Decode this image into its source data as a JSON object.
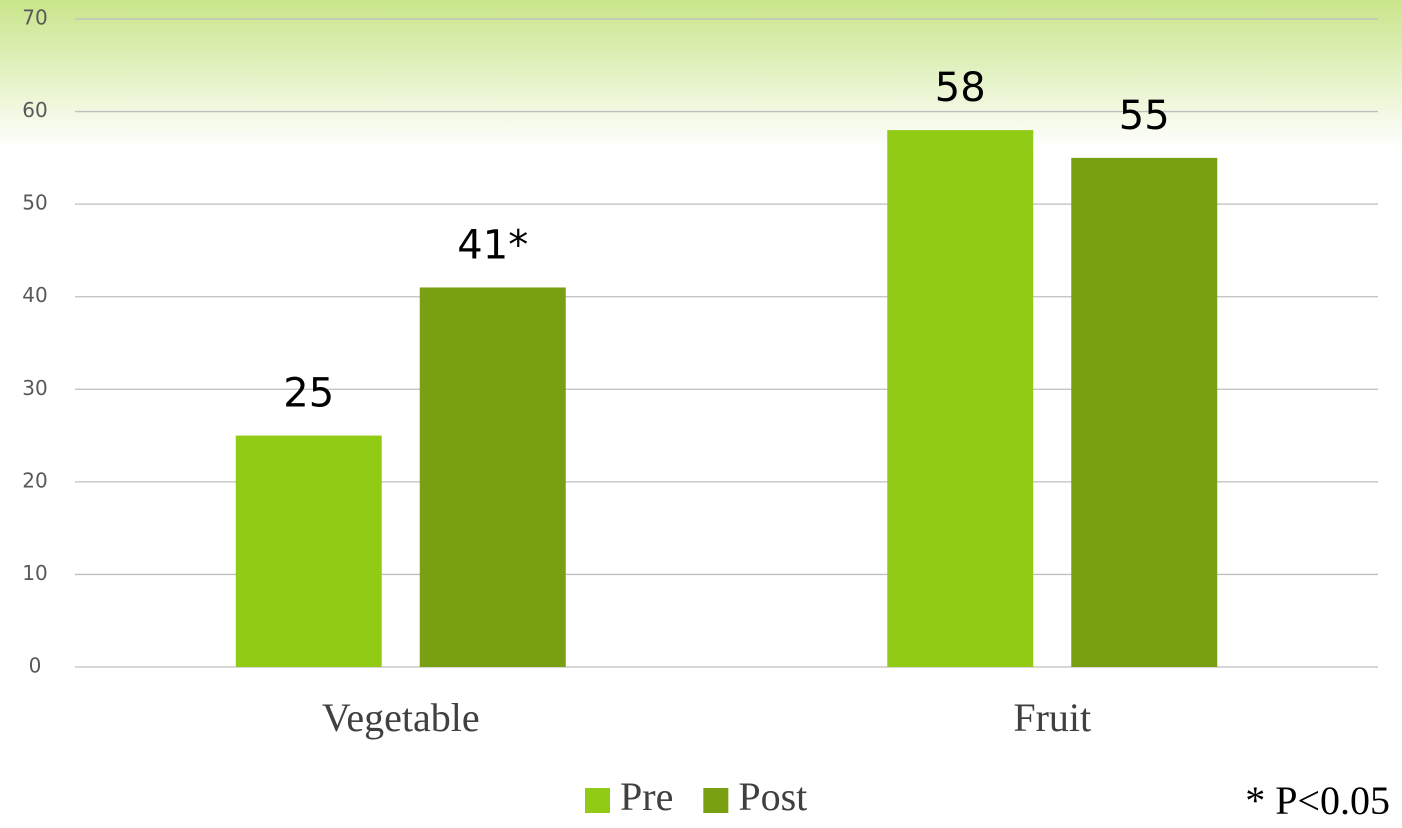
{
  "chart_data": {
    "type": "bar",
    "categories": [
      "Vegetable",
      "Fruit"
    ],
    "series": [
      {
        "name": "Pre",
        "color": "#92cb16",
        "values": [
          25,
          58
        ],
        "value_labels": [
          "25",
          "58"
        ]
      },
      {
        "name": "Post",
        "color": "#78a012",
        "values": [
          41,
          55
        ],
        "value_labels": [
          "41*",
          "55"
        ]
      }
    ],
    "ylim": [
      0,
      70
    ],
    "yticks": [
      0,
      10,
      20,
      30,
      40,
      50,
      60,
      70
    ],
    "grid": true,
    "legend": "bottom",
    "annotation": "* P<0.05"
  }
}
